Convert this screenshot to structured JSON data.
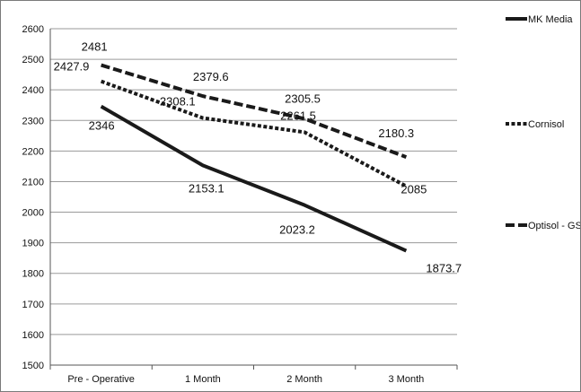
{
  "chart_data": {
    "type": "line",
    "categories": [
      "Pre - Operative",
      "1 Month",
      "2 Month",
      "3 Month"
    ],
    "ylim": [
      1500,
      2600
    ],
    "yticks": [
      1500,
      1600,
      1700,
      1800,
      1900,
      2000,
      2100,
      2200,
      2300,
      2400,
      2500,
      2600
    ],
    "grid": "horizontal",
    "legend_position": "right",
    "series": [
      {
        "name": "MK Media",
        "values": [
          2346,
          2153.1,
          2023.2,
          1873.7
        ],
        "style": "solid",
        "color": "#1a1a1a"
      },
      {
        "name": "Cornisol",
        "values": [
          2427.9,
          2308.1,
          2261.5,
          2085
        ],
        "style": "dotted",
        "color": "#1a1a1a"
      },
      {
        "name": "Optisol - GS",
        "values": [
          2481,
          2379.6,
          2305.5,
          2180.3
        ],
        "style": "dashed",
        "color": "#1a1a1a"
      }
    ],
    "data_labels": [
      [
        "2346",
        "2153.1",
        "2023.2",
        "1873.7"
      ],
      [
        "2427.9",
        "2308.1",
        "2261.5",
        "2085"
      ],
      [
        "2481",
        "2379.6",
        "2305.5",
        "2180.3"
      ]
    ]
  }
}
